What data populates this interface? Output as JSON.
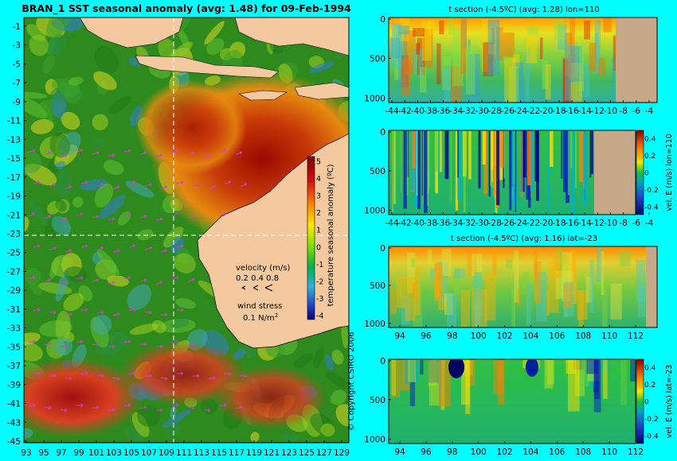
{
  "main_map": {
    "title": "BRAN_1 SST seasonal anomaly (avg: 1.48) for 09-Feb-1994",
    "lat_ticks": [
      "-1",
      "-3",
      "-5",
      "-7",
      "-9",
      "-11",
      "-13",
      "-15",
      "-17",
      "-19",
      "-21",
      "-23",
      "-25",
      "-27",
      "-29",
      "-31",
      "-33",
      "-35",
      "-37",
      "-39",
      "-41",
      "-43",
      "-45"
    ],
    "lon_ticks": [
      "93",
      "95",
      "97",
      "99",
      "101",
      "103",
      "105",
      "107",
      "109",
      "111",
      "113",
      "115",
      "117",
      "119",
      "121",
      "123",
      "125",
      "127",
      "129"
    ],
    "colorbar": {
      "label": "temperature seasonal anomaly (ºC)",
      "ticks": [
        "5",
        "4",
        "3",
        "2",
        "1",
        "0",
        "-1",
        "-2",
        "-3",
        "-4"
      ]
    },
    "legend": {
      "velocity_label": "velocity (m/s)",
      "velocity_values": "0.2 0.4 0.8",
      "wind_label": "wind stress",
      "wind_value": "0.1 N/m",
      "wind_exp": "2"
    },
    "copyright": "© Copyright CSIRO 2006",
    "colors": {
      "ocean_dark": "#1f5a14",
      "land": "#f5c9a0",
      "section_line": "#ffffff",
      "vectors": "#d63cd6"
    }
  },
  "panels": [
    {
      "title": "t section (-4.5ºC) (avg: 1.28) lon=110",
      "y_ticks": [
        "0",
        "500",
        "1000"
      ],
      "x_ticks": [
        "-44",
        "-42",
        "-40",
        "-38",
        "-36",
        "-34",
        "-32",
        "-30",
        "-28",
        "-26",
        "-24",
        "-22",
        "-20",
        "-18",
        "-16",
        "-14",
        "-12",
        "-10",
        "-8",
        "-6",
        "-4"
      ],
      "colorbar_label": "",
      "colorbar_ticks": []
    },
    {
      "title": "",
      "y_ticks": [
        "0",
        "500",
        "1000"
      ],
      "x_ticks": [
        "-44",
        "-42",
        "-40",
        "-38",
        "-36",
        "-34",
        "-32",
        "-30",
        "-28",
        "-26",
        "-24",
        "-22",
        "-20",
        "-18",
        "-16",
        "-14",
        "-12",
        "-10",
        "-8",
        "-6",
        "-4"
      ],
      "colorbar_label": "vel. E (m/s) lon=110",
      "colorbar_ticks": [
        "0.4",
        "0.2",
        "0",
        "-0.2",
        "-0.4"
      ]
    },
    {
      "title": "t section (-4.5ºC) (avg: 1.16) lat=-23",
      "y_ticks": [
        "0",
        "500",
        "1000"
      ],
      "x_ticks": [
        "94",
        "96",
        "98",
        "100",
        "102",
        "104",
        "106",
        "108",
        "110",
        "112"
      ],
      "colorbar_label": "",
      "colorbar_ticks": []
    },
    {
      "title": "",
      "y_ticks": [
        "0",
        "500",
        "1000"
      ],
      "x_ticks": [
        "94",
        "96",
        "98",
        "100",
        "102",
        "104",
        "106",
        "108",
        "110",
        "112"
      ],
      "colorbar_label": "vel. E (m/s) lat=-23",
      "colorbar_ticks": [
        "0.4",
        "0.2",
        "0",
        "-0.2",
        "-0.4"
      ]
    }
  ],
  "chart_data": [
    {
      "type": "heatmap",
      "title": "BRAN_1 SST seasonal anomaly (avg: 1.48) for 09-Feb-1994",
      "xlabel": "",
      "ylabel": "",
      "xlim": [
        93,
        130
      ],
      "ylim": [
        -45,
        0
      ],
      "colorbar_range": [
        -4,
        5
      ]
    },
    {
      "type": "heatmap",
      "title": "t section (-4.5ºC) (avg: 1.28) lon=110",
      "xlim": [
        -45,
        -2
      ],
      "ylim": [
        1050,
        0
      ]
    },
    {
      "type": "heatmap",
      "title": "",
      "colorbar_label": "vel. E (m/s) lon=110",
      "xlim": [
        -45,
        -2
      ],
      "ylim": [
        1050,
        0
      ],
      "colorbar_range": [
        -0.4,
        0.4
      ]
    },
    {
      "type": "heatmap",
      "title": "t section (-4.5ºC) (avg: 1.16) lat=-23",
      "xlim": [
        93,
        114
      ],
      "ylim": [
        1050,
        0
      ]
    },
    {
      "type": "heatmap",
      "title": "",
      "colorbar_label": "vel. E (m/s) lat=-23",
      "xlim": [
        93,
        114
      ],
      "ylim": [
        1050,
        0
      ],
      "colorbar_range": [
        -0.4,
        0.4
      ]
    }
  ]
}
